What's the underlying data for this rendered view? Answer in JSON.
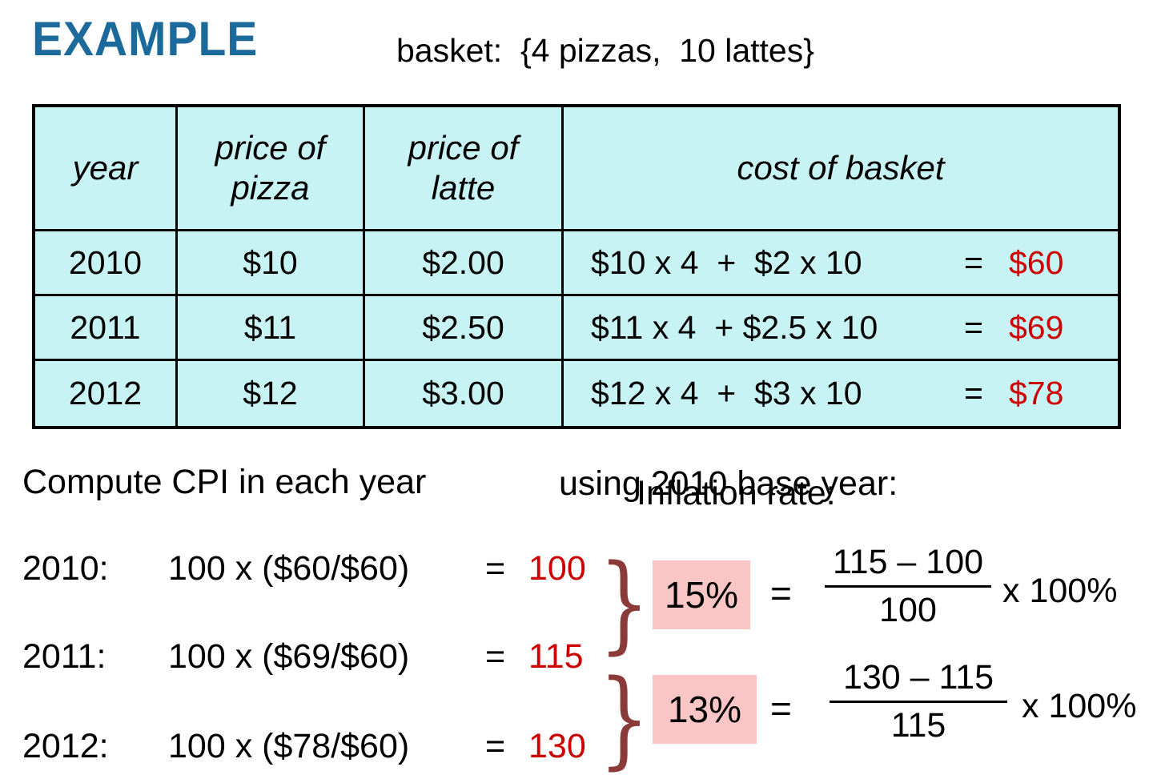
{
  "title": "EXAMPLE",
  "basket_label": "basket:  {4 pizzas,  10 lattes}",
  "table": {
    "headers": {
      "year": "year",
      "pizza": "price of\npizza",
      "latte": "price of\nlatte",
      "basket": "cost of basket"
    },
    "rows": [
      {
        "year": "2010",
        "pizza": "$10",
        "latte": "$2.00",
        "expr": "$10 x 4  +  $2 x 10",
        "eq": "=",
        "result": "$60"
      },
      {
        "year": "2011",
        "pizza": "$11",
        "latte": "$2.50",
        "expr": "$11 x 4  + $2.5 x 10",
        "eq": "=",
        "result": "$69"
      },
      {
        "year": "2012",
        "pizza": "$12",
        "latte": "$3.00",
        "expr": "$12 x 4  +  $3 x 10",
        "eq": "=",
        "result": "$78"
      }
    ]
  },
  "compute_heading": "Compute CPI in each year",
  "base_year_text": "using 2010 base year:",
  "inflation_heading": "Inflation rate:",
  "cpi_rows": [
    {
      "year": "2010:",
      "expr": "100 x ($60/$60)",
      "eq": "=",
      "result": "100"
    },
    {
      "year": "2011:",
      "expr": "100 x ($69/$60)",
      "eq": "=",
      "result": "115"
    },
    {
      "year": "2012:",
      "expr": "100 x ($78/$60)",
      "eq": "=",
      "result": "130"
    }
  ],
  "brace_glyph": "}",
  "inflation_calcs": [
    {
      "pct": "15%",
      "eq": "=",
      "numerator": "115 – 100",
      "denominator": "100",
      "times": "x 100%"
    },
    {
      "pct": "13%",
      "eq": "=",
      "numerator": "130 – 115",
      "denominator": "115",
      "times": "x 100%"
    }
  ],
  "colors": {
    "accent_blue": "#1B6A9B",
    "result_red": "#CC0000",
    "table_bg": "#C8F3F4",
    "highlight_pink": "#F9C5C5",
    "brace_maroon": "#8B3A3A"
  }
}
